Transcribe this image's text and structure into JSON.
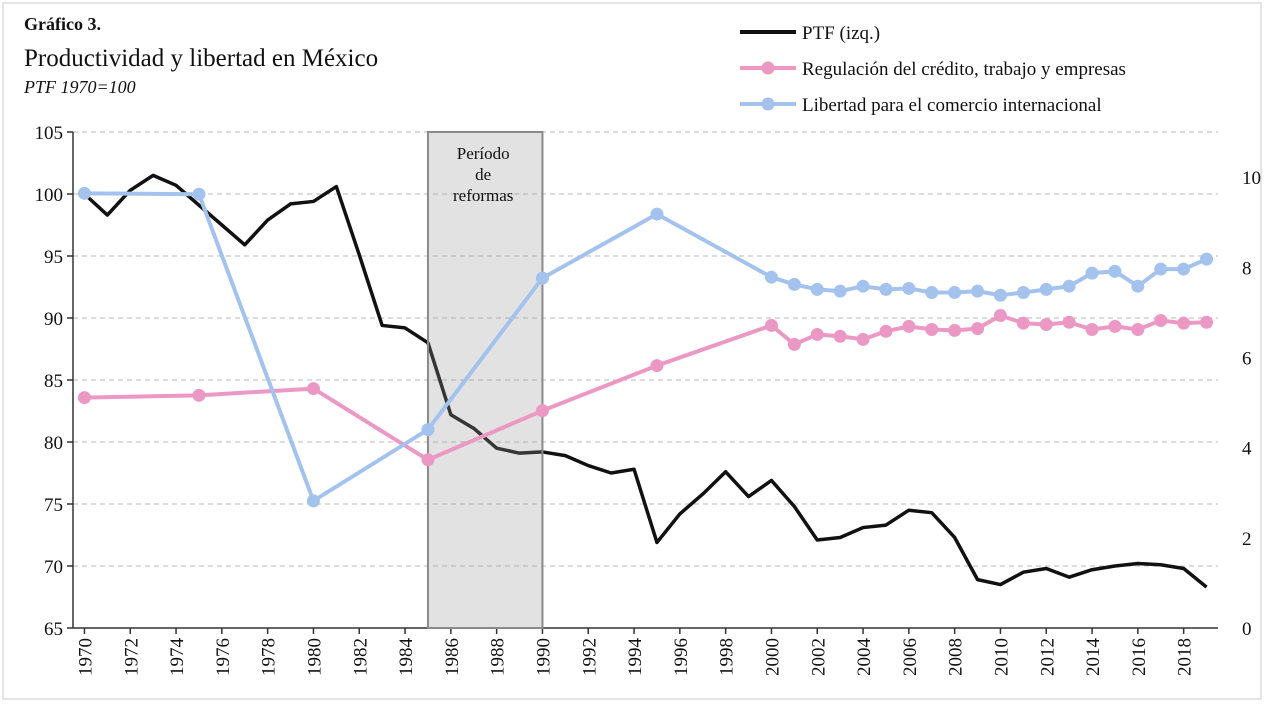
{
  "chart_data": {
    "type": "line",
    "title": "Gráfico 3.",
    "subtitle": "Productividad y libertad en México",
    "note": "PTF 1970=100",
    "annotation": {
      "lines": [
        "Período",
        "de",
        "reformas"
      ],
      "span": [
        1985,
        1990
      ]
    },
    "xlim": [
      1969.5,
      2019.5
    ],
    "xticks": [
      1970,
      1972,
      1974,
      1976,
      1978,
      1980,
      1982,
      1984,
      1986,
      1988,
      1990,
      1992,
      1994,
      1996,
      1998,
      2000,
      2002,
      2004,
      2006,
      2008,
      2010,
      2012,
      2014,
      2016,
      2018
    ],
    "ylim": [
      65,
      105
    ],
    "yticks": [
      65,
      70,
      75,
      80,
      85,
      90,
      95,
      100,
      105
    ],
    "y2lim": [
      0,
      11
    ],
    "y2ticks": [
      0,
      2,
      4,
      6,
      8,
      10
    ],
    "grid": true,
    "series": [
      {
        "name": "PTF (izq.)",
        "color": "#111111",
        "markers": false,
        "x": [
          1970,
          1971,
          1972,
          1973,
          1974,
          1975,
          1976,
          1977,
          1978,
          1979,
          1980,
          1981,
          1982,
          1983,
          1984,
          1985,
          1986,
          1987,
          1988,
          1989,
          1990,
          1991,
          1992,
          1993,
          1994,
          1995,
          1996,
          1997,
          1998,
          1999,
          2000,
          2001,
          2002,
          2003,
          2004,
          2005,
          2006,
          2007,
          2008,
          2009,
          2010,
          2011,
          2012,
          2013,
          2014,
          2015,
          2016,
          2017,
          2018,
          2019
        ],
        "values": [
          100,
          98.3,
          100.3,
          101.5,
          100.7,
          99.1,
          97.5,
          95.9,
          97.9,
          99.2,
          99.4,
          100.6,
          95.1,
          89.4,
          89.2,
          88.0,
          82.2,
          81.1,
          79.5,
          79.1,
          79.2,
          78.9,
          78.1,
          77.5,
          77.8,
          71.9,
          74.2,
          75.8,
          77.6,
          75.6,
          76.9,
          74.8,
          72.1,
          72.3,
          73.1,
          73.3,
          74.5,
          74.3,
          72.3,
          68.9,
          68.5,
          69.5,
          69.8,
          69.1,
          69.7,
          70.0,
          70.2,
          70.1,
          69.8,
          68.3
        ]
      },
      {
        "name": "Regulación del crédito, trabajo y empresas",
        "color": "#ec98c4",
        "axis": "y2",
        "markers": true,
        "x": [
          1970,
          1975,
          1980,
          1985,
          1990,
          1995,
          2000,
          2001,
          2002,
          2003,
          2004,
          2005,
          2006,
          2007,
          2008,
          2009,
          2010,
          2011,
          2012,
          2013,
          2014,
          2015,
          2016,
          2017,
          2018,
          2019
        ],
        "values": [
          5.11,
          5.16,
          5.31,
          3.73,
          4.82,
          5.82,
          6.71,
          6.29,
          6.51,
          6.47,
          6.4,
          6.58,
          6.69,
          6.62,
          6.6,
          6.64,
          6.93,
          6.76,
          6.73,
          6.78,
          6.62,
          6.69,
          6.62,
          6.82,
          6.76,
          6.78
        ]
      },
      {
        "name": "Libertad para el comercio internacional",
        "color": "#a3c3ee",
        "axis": "y2",
        "markers": true,
        "x": [
          1970,
          1975,
          1980,
          1985,
          1990,
          1995,
          2000,
          2001,
          2002,
          2003,
          2004,
          2005,
          2006,
          2007,
          2008,
          2009,
          2010,
          2011,
          2012,
          2013,
          2014,
          2015,
          2016,
          2017,
          2018,
          2019
        ],
        "values": [
          9.64,
          9.62,
          2.82,
          4.4,
          7.76,
          9.18,
          7.78,
          7.62,
          7.51,
          7.47,
          7.58,
          7.51,
          7.53,
          7.44,
          7.44,
          7.47,
          7.38,
          7.44,
          7.51,
          7.58,
          7.87,
          7.91,
          7.58,
          7.96,
          7.96,
          8.18
        ]
      }
    ]
  }
}
